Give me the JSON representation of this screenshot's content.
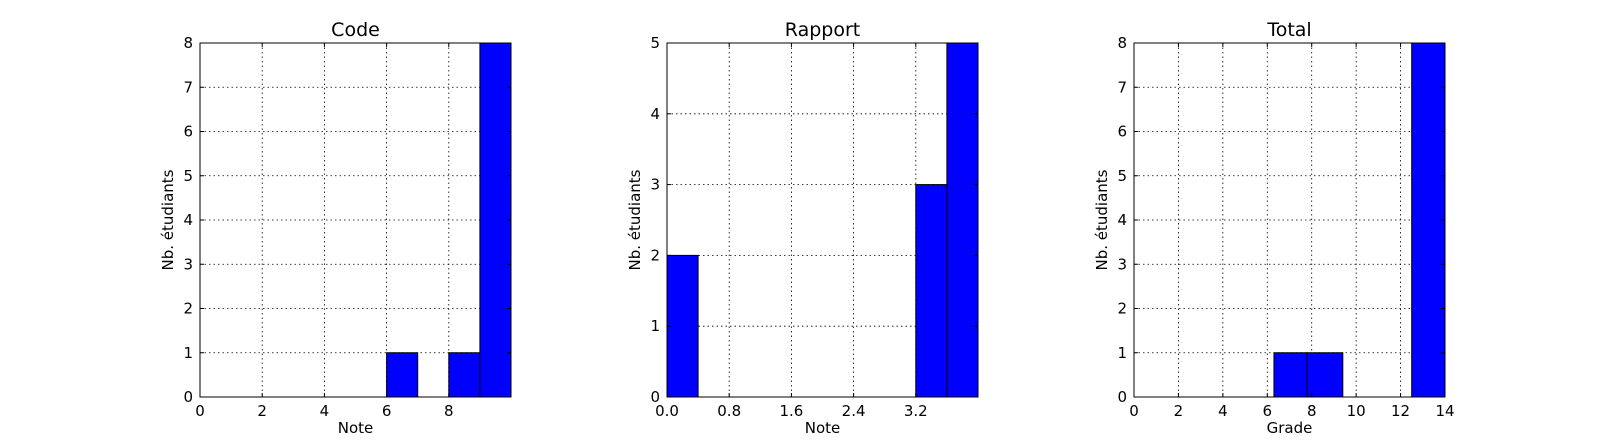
{
  "figure": {
    "background": "#ffffff",
    "bar_color": "#0000ff",
    "bar_edge": "#000000",
    "grid_style": "dotted",
    "grid": true
  },
  "chart_data": [
    {
      "type": "bar",
      "title": "Code",
      "xlabel": "Note",
      "ylabel": "Nb. étudiants",
      "xlim": [
        0,
        10
      ],
      "ylim": [
        0,
        8
      ],
      "xticks": [
        0,
        2,
        4,
        6,
        8
      ],
      "xtick_labels": [
        "0",
        "2",
        "4",
        "6",
        "8"
      ],
      "yticks": [
        0,
        1,
        2,
        3,
        4,
        5,
        6,
        7,
        8
      ],
      "bins": [
        {
          "x0": 1,
          "x1": 2,
          "value": 0
        },
        {
          "x0": 2,
          "x1": 3,
          "value": 0
        },
        {
          "x0": 3,
          "x1": 4,
          "value": 0
        },
        {
          "x0": 4,
          "x1": 5,
          "value": 0
        },
        {
          "x0": 5,
          "x1": 6,
          "value": 0
        },
        {
          "x0": 6,
          "x1": 7,
          "value": 1
        },
        {
          "x0": 7,
          "x1": 8,
          "value": 0
        },
        {
          "x0": 8,
          "x1": 9,
          "value": 1
        },
        {
          "x0": 9,
          "x1": 10,
          "value": 8
        }
      ]
    },
    {
      "type": "bar",
      "title": "Rapport",
      "xlabel": "Note",
      "ylabel": "Nb. étudiants",
      "xlim": [
        0,
        4
      ],
      "ylim": [
        0,
        5
      ],
      "xticks": [
        0,
        0.8,
        1.6,
        2.4,
        3.2
      ],
      "xtick_labels": [
        "0.0",
        "0.8",
        "1.6",
        "2.4",
        "3.2"
      ],
      "yticks": [
        0,
        1,
        2,
        3,
        4,
        5
      ],
      "bins": [
        {
          "x0": 0,
          "x1": 0.4,
          "value": 2
        },
        {
          "x0": 0.4,
          "x1": 0.8,
          "value": 0
        },
        {
          "x0": 0.8,
          "x1": 1.2,
          "value": 0
        },
        {
          "x0": 1.2,
          "x1": 1.6,
          "value": 0
        },
        {
          "x0": 1.6,
          "x1": 2.0,
          "value": 0
        },
        {
          "x0": 2.0,
          "x1": 2.4,
          "value": 0
        },
        {
          "x0": 2.4,
          "x1": 2.8,
          "value": 0
        },
        {
          "x0": 2.8,
          "x1": 3.2,
          "value": 0
        },
        {
          "x0": 3.2,
          "x1": 3.6,
          "value": 3
        },
        {
          "x0": 3.6,
          "x1": 4.0,
          "value": 5
        }
      ]
    },
    {
      "type": "bar",
      "title": "Total",
      "xlabel": "Grade",
      "ylabel": "Nb. étudiants",
      "xlim": [
        0,
        14
      ],
      "ylim": [
        0,
        8
      ],
      "xticks": [
        0,
        2,
        4,
        6,
        8,
        10,
        12,
        14
      ],
      "xtick_labels": [
        "0",
        "2",
        "4",
        "6",
        "8",
        "10",
        "12",
        "14"
      ],
      "yticks": [
        0,
        1,
        2,
        3,
        4,
        5,
        6,
        7,
        8
      ],
      "bins": [
        {
          "x0": 0.2,
          "x1": 1.8,
          "value": 0
        },
        {
          "x0": 1.8,
          "x1": 3.3,
          "value": 0
        },
        {
          "x0": 3.3,
          "x1": 4.8,
          "value": 0
        },
        {
          "x0": 4.8,
          "x1": 6.3,
          "value": 0
        },
        {
          "x0": 6.3,
          "x1": 7.8,
          "value": 1
        },
        {
          "x0": 7.8,
          "x1": 9.4,
          "value": 1
        },
        {
          "x0": 9.4,
          "x1": 10.9,
          "value": 0
        },
        {
          "x0": 10.9,
          "x1": 12.5,
          "value": 0
        },
        {
          "x0": 12.5,
          "x1": 14.0,
          "value": 8
        }
      ]
    }
  ]
}
